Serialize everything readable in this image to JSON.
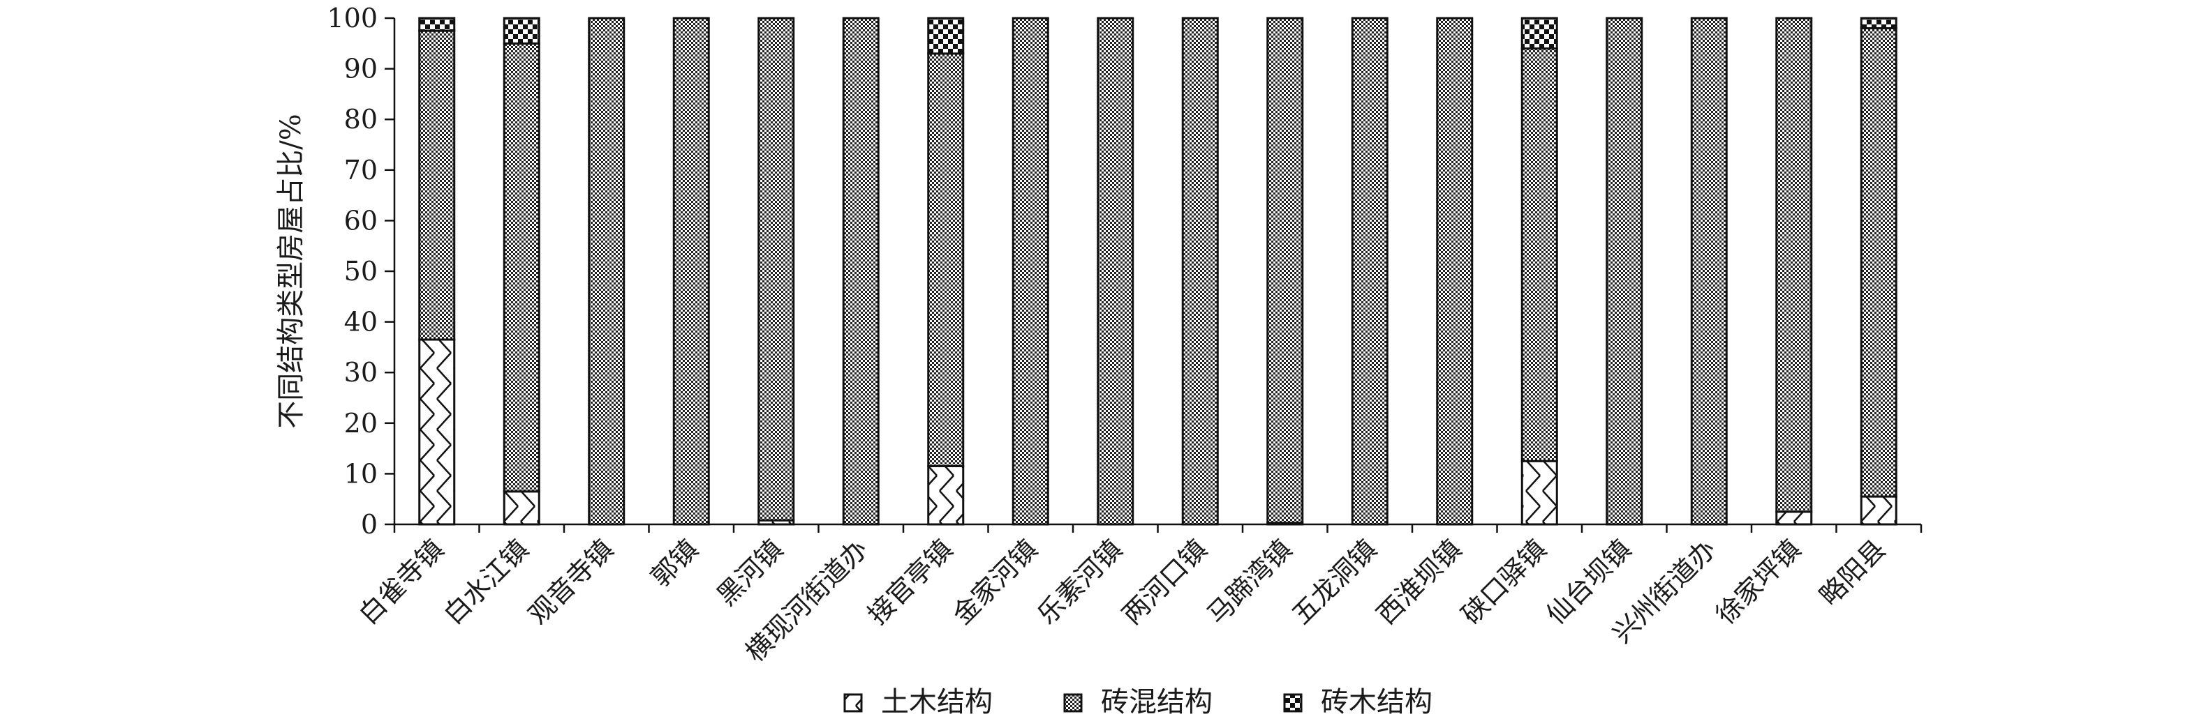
{
  "chart_data": {
    "type": "bar",
    "stacked": true,
    "title": "",
    "xlabel": "",
    "ylabel": "不同结构类型房屋占比/%",
    "ylim": [
      0,
      100
    ],
    "yticks": [
      0,
      10,
      20,
      30,
      40,
      50,
      60,
      70,
      80,
      90,
      100
    ],
    "grid": false,
    "legend_position": "bottom",
    "categories": [
      "白雀寺镇",
      "白水江镇",
      "观音寺镇",
      "郭镇",
      "黑河镇",
      "横现河街道办",
      "接官亭镇",
      "金家河镇",
      "乐素河镇",
      "两河口镇",
      "马蹄湾镇",
      "五龙洞镇",
      "西淮坝镇",
      "硖口驿镇",
      "仙台坝镇",
      "兴州街道办",
      "徐家坪镇",
      "略阳县"
    ],
    "series": [
      {
        "name": "土木结构",
        "pattern": "hatch",
        "values": [
          36.5,
          6.5,
          0,
          0,
          0.8,
          0,
          11.5,
          0,
          0,
          0,
          0.3,
          0,
          0,
          12.5,
          0,
          0,
          2.5,
          5.5
        ]
      },
      {
        "name": "砖混结构",
        "pattern": "dense-checker",
        "values": [
          61,
          88.5,
          100,
          100,
          99.2,
          100,
          81.5,
          100,
          100,
          100,
          99.7,
          100,
          100,
          81.5,
          100,
          100,
          97.5,
          92.5
        ]
      },
      {
        "name": "砖木结构",
        "pattern": "coarse-checker",
        "values": [
          2.5,
          5,
          0,
          0,
          0,
          0,
          7,
          0,
          0,
          0,
          0,
          0,
          0,
          6,
          0,
          0,
          0,
          2
        ]
      }
    ]
  }
}
